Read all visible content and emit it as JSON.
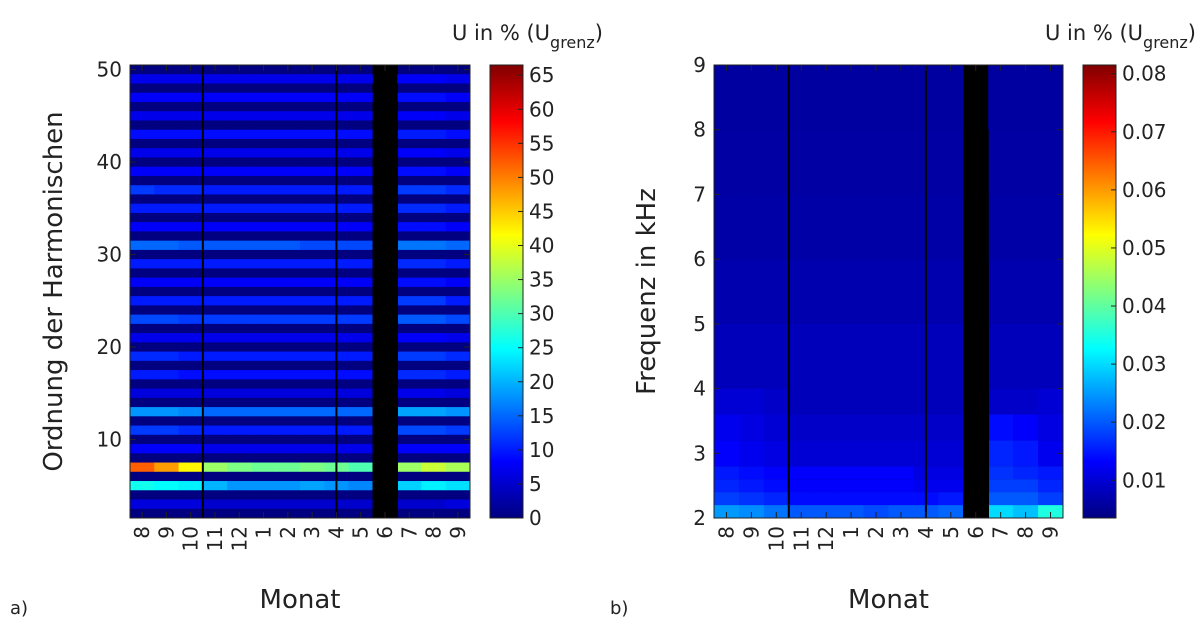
{
  "chart_data": [
    {
      "type": "heatmap",
      "panel_label": "a)",
      "xlabel": "Monat",
      "ylabel": "Ordnung der Harmonischen",
      "colorbar_label": "U in % (U",
      "colorbar_label_sub": "grenz",
      "colorbar_label_end": ")",
      "categories": [
        "8",
        "9",
        "10",
        "11",
        "12",
        "1",
        "2",
        "3",
        "4",
        "5",
        "6",
        "7",
        "8",
        "9"
      ],
      "y": [
        3,
        5,
        7,
        9,
        11,
        13,
        15,
        17,
        19,
        21,
        23,
        25,
        27,
        29,
        31,
        33,
        35,
        37,
        39,
        41,
        43,
        45,
        47,
        49
      ],
      "z": [
        [
          6,
          6,
          6,
          5,
          5,
          5,
          5,
          5,
          5,
          5,
          null,
          5,
          5,
          6
        ],
        [
          26,
          25,
          24,
          20,
          18,
          18,
          18,
          19,
          18,
          17,
          null,
          22,
          24,
          23
        ],
        [
          52,
          48,
          42,
          35,
          33,
          32,
          32,
          33,
          32,
          30,
          null,
          35,
          38,
          36
        ],
        [
          8,
          8,
          8,
          7,
          7,
          7,
          7,
          7,
          7,
          7,
          null,
          8,
          8,
          8
        ],
        [
          12,
          12,
          11,
          10,
          10,
          10,
          10,
          10,
          10,
          10,
          null,
          13,
          13,
          12
        ],
        [
          18,
          18,
          17,
          15,
          15,
          15,
          15,
          15,
          15,
          15,
          null,
          19,
          19,
          18
        ],
        [
          6,
          6,
          6,
          6,
          6,
          6,
          6,
          6,
          6,
          6,
          null,
          7,
          7,
          6
        ],
        [
          10,
          10,
          9,
          9,
          9,
          9,
          9,
          9,
          9,
          9,
          null,
          11,
          11,
          10
        ],
        [
          11,
          11,
          10,
          10,
          10,
          10,
          10,
          10,
          10,
          10,
          null,
          12,
          12,
          11
        ],
        [
          7,
          7,
          7,
          7,
          7,
          7,
          7,
          7,
          7,
          7,
          null,
          8,
          8,
          7
        ],
        [
          13,
          13,
          12,
          12,
          12,
          12,
          12,
          12,
          12,
          12,
          null,
          14,
          14,
          13
        ],
        [
          10,
          10,
          10,
          10,
          10,
          10,
          10,
          10,
          10,
          10,
          null,
          12,
          12,
          10
        ],
        [
          8,
          8,
          8,
          8,
          8,
          8,
          8,
          8,
          8,
          8,
          null,
          9,
          9,
          8
        ],
        [
          10,
          10,
          10,
          10,
          10,
          10,
          10,
          10,
          10,
          10,
          null,
          11,
          11,
          10
        ],
        [
          15,
          15,
          14,
          14,
          14,
          14,
          14,
          13,
          13,
          13,
          null,
          16,
          16,
          15
        ],
        [
          8,
          8,
          8,
          8,
          8,
          8,
          8,
          8,
          8,
          8,
          null,
          9,
          9,
          8
        ],
        [
          10,
          10,
          10,
          10,
          10,
          10,
          10,
          10,
          10,
          10,
          null,
          11,
          11,
          10
        ],
        [
          12,
          11,
          11,
          10,
          10,
          10,
          10,
          10,
          10,
          10,
          null,
          12,
          12,
          11
        ],
        [
          8,
          8,
          8,
          8,
          8,
          8,
          8,
          8,
          8,
          8,
          null,
          9,
          9,
          8
        ],
        [
          7,
          7,
          7,
          7,
          7,
          7,
          7,
          7,
          7,
          7,
          null,
          8,
          8,
          7
        ],
        [
          9,
          9,
          9,
          9,
          9,
          9,
          9,
          9,
          9,
          9,
          null,
          10,
          10,
          9
        ],
        [
          7,
          7,
          7,
          7,
          7,
          7,
          7,
          7,
          7,
          7,
          null,
          8,
          8,
          7
        ],
        [
          8,
          8,
          8,
          8,
          8,
          8,
          8,
          8,
          8,
          8,
          null,
          9,
          9,
          8
        ],
        [
          7,
          7,
          7,
          7,
          7,
          7,
          7,
          7,
          7,
          7,
          null,
          8,
          8,
          7
        ]
      ],
      "ylim": [
        1.5,
        50.5
      ],
      "yticks": [
        10,
        20,
        30,
        40,
        50
      ],
      "clim": [
        0,
        66.5
      ],
      "cticks": [
        0,
        5,
        10,
        15,
        20,
        25,
        30,
        35,
        40,
        45,
        50,
        55,
        60,
        65
      ],
      "colormap": [
        "#000080",
        "#0000ff",
        "#0080ff",
        "#00ffff",
        "#80ff80",
        "#ffff00",
        "#ff8000",
        "#ff0000",
        "#800000"
      ]
    },
    {
      "type": "heatmap",
      "panel_label": "b)",
      "xlabel": "Monat",
      "ylabel": "Frequenz in kHz",
      "colorbar_label": "U in % (U",
      "colorbar_label_sub": "grenz",
      "colorbar_label_end": ")",
      "categories": [
        "8",
        "9",
        "10",
        "11",
        "12",
        "1",
        "2",
        "3",
        "4",
        "5",
        "6",
        "7",
        "8",
        "9"
      ],
      "ybins": [
        2,
        2.2,
        2.4,
        2.6,
        2.8,
        3.2,
        3.6,
        4,
        5,
        6,
        7,
        8,
        9
      ],
      "z": [
        [
          0.025,
          0.024,
          0.022,
          0.02,
          0.02,
          0.02,
          0.019,
          0.02,
          0.02,
          0.021,
          null,
          0.03,
          0.028,
          0.035
        ],
        [
          0.018,
          0.017,
          0.016,
          0.014,
          0.014,
          0.014,
          0.014,
          0.014,
          0.014,
          0.015,
          null,
          0.02,
          0.02,
          0.018
        ],
        [
          0.016,
          0.015,
          0.014,
          0.013,
          0.013,
          0.013,
          0.013,
          0.013,
          0.012,
          0.012,
          null,
          0.018,
          0.018,
          0.016
        ],
        [
          0.015,
          0.014,
          0.013,
          0.013,
          0.013,
          0.013,
          0.013,
          0.013,
          0.011,
          0.011,
          null,
          0.017,
          0.016,
          0.015
        ],
        [
          0.013,
          0.012,
          0.011,
          0.01,
          0.01,
          0.01,
          0.01,
          0.01,
          0.01,
          0.01,
          null,
          0.016,
          0.015,
          0.012
        ],
        [
          0.012,
          0.011,
          0.01,
          0.009,
          0.009,
          0.009,
          0.009,
          0.009,
          0.009,
          0.009,
          null,
          0.014,
          0.013,
          0.011
        ],
        [
          0.01,
          0.01,
          0.009,
          0.008,
          0.008,
          0.008,
          0.008,
          0.008,
          0.008,
          0.008,
          null,
          0.009,
          0.009,
          0.01
        ],
        [
          0.008,
          0.008,
          0.008,
          0.008,
          0.008,
          0.008,
          0.008,
          0.008,
          0.008,
          0.008,
          null,
          0.008,
          0.008,
          0.008
        ],
        [
          0.007,
          0.007,
          0.007,
          0.007,
          0.007,
          0.007,
          0.007,
          0.007,
          0.007,
          0.007,
          null,
          0.007,
          0.007,
          0.007
        ],
        [
          0.0065,
          0.0065,
          0.0065,
          0.0065,
          0.0065,
          0.0065,
          0.0065,
          0.0065,
          0.0065,
          0.0065,
          null,
          0.0065,
          0.0065,
          0.0065
        ],
        [
          0.0062,
          0.0062,
          0.0062,
          0.0062,
          0.0062,
          0.0062,
          0.0062,
          0.0062,
          0.0062,
          0.0062,
          null,
          0.0062,
          0.0062,
          0.0062
        ],
        [
          0.006,
          0.006,
          0.006,
          0.006,
          0.006,
          0.006,
          0.006,
          0.006,
          0.006,
          0.006,
          null,
          0.006,
          0.006,
          0.006
        ]
      ],
      "ylim": [
        2,
        9
      ],
      "yticks": [
        2,
        3,
        4,
        5,
        6,
        7,
        8,
        9
      ],
      "clim": [
        0.0035,
        0.0815
      ],
      "cticks": [
        0.01,
        0.02,
        0.03,
        0.04,
        0.05,
        0.06,
        0.07,
        0.08
      ],
      "colormap": [
        "#000080",
        "#0000ff",
        "#0080ff",
        "#00ffff",
        "#80ff80",
        "#ffff00",
        "#ff8000",
        "#ff0000",
        "#800000"
      ]
    }
  ]
}
